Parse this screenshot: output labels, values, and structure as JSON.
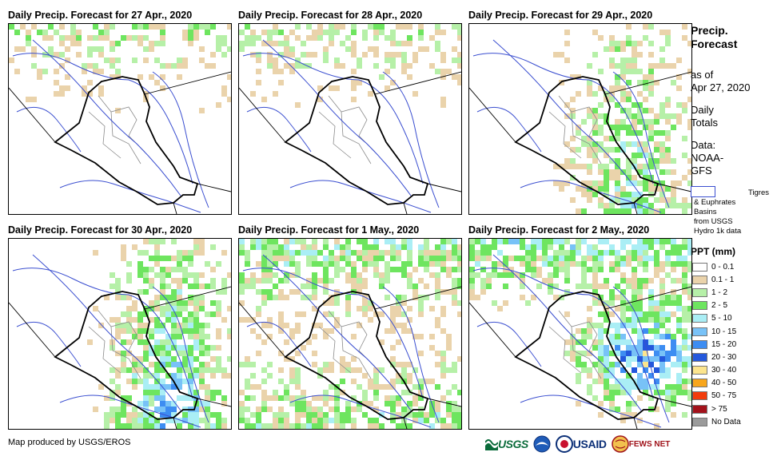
{
  "panels": [
    {
      "title": "Daily Precip. Forecast for 27 Apr., 2020",
      "intensity": 0.3,
      "focus": "north"
    },
    {
      "title": "Daily Precip. Forecast for 28 Apr., 2020",
      "intensity": 0.3,
      "focus": "north"
    },
    {
      "title": "Daily Precip. Forecast for 29 Apr., 2020",
      "intensity": 0.55,
      "focus": "east"
    },
    {
      "title": "Daily Precip. Forecast for 30 Apr., 2020",
      "intensity": 0.8,
      "focus": "east"
    },
    {
      "title": "Daily Precip. Forecast for 1 May., 2020",
      "intensity": 0.65,
      "focus": "west"
    },
    {
      "title": "Daily Precip. Forecast for 2 May., 2020",
      "intensity": 0.95,
      "focus": "southeast"
    }
  ],
  "legend": {
    "title_line1": "Precip.",
    "title_line2": "Forecast",
    "asof_line1": "as of",
    "asof_line2": "Apr 27, 2020",
    "daily_line1": "Daily",
    "daily_line2": "Totals",
    "data_line1": "Data:",
    "data_line2": "NOAA-",
    "data_line3": "GFS",
    "basin_line1": "Tigres",
    "basin_line2": "& Euphrates",
    "basin_line3": "Basins",
    "basin_line4": "from USGS",
    "basin_line5": "Hydro 1k data",
    "ppt_title": "PPT (mm)",
    "classes": [
      {
        "label": "0 - 0.1",
        "color": "#ffffff"
      },
      {
        "label": "0.1 - 1",
        "color": "#ead3ab"
      },
      {
        "label": "1 - 2",
        "color": "#b6f0a8"
      },
      {
        "label": "2 - 5",
        "color": "#6ee55f"
      },
      {
        "label": "5 - 10",
        "color": "#aaeef5"
      },
      {
        "label": "10 - 15",
        "color": "#78c2f7"
      },
      {
        "label": "15 - 20",
        "color": "#3d8df2"
      },
      {
        "label": "20 - 30",
        "color": "#2458dc"
      },
      {
        "label": "30 - 40",
        "color": "#fce58e"
      },
      {
        "label": "40 - 50",
        "color": "#f8a61c"
      },
      {
        "label": "50 - 75",
        "color": "#f23c0c"
      },
      {
        "label": "> 75",
        "color": "#a3121b"
      },
      {
        "label": "No Data",
        "color": "#9b9b9b"
      }
    ]
  },
  "footer": {
    "credit": "Map produced by USGS/EROS",
    "usgs": "USGS",
    "usaid": "USAID",
    "fews": "FEWS NET"
  }
}
